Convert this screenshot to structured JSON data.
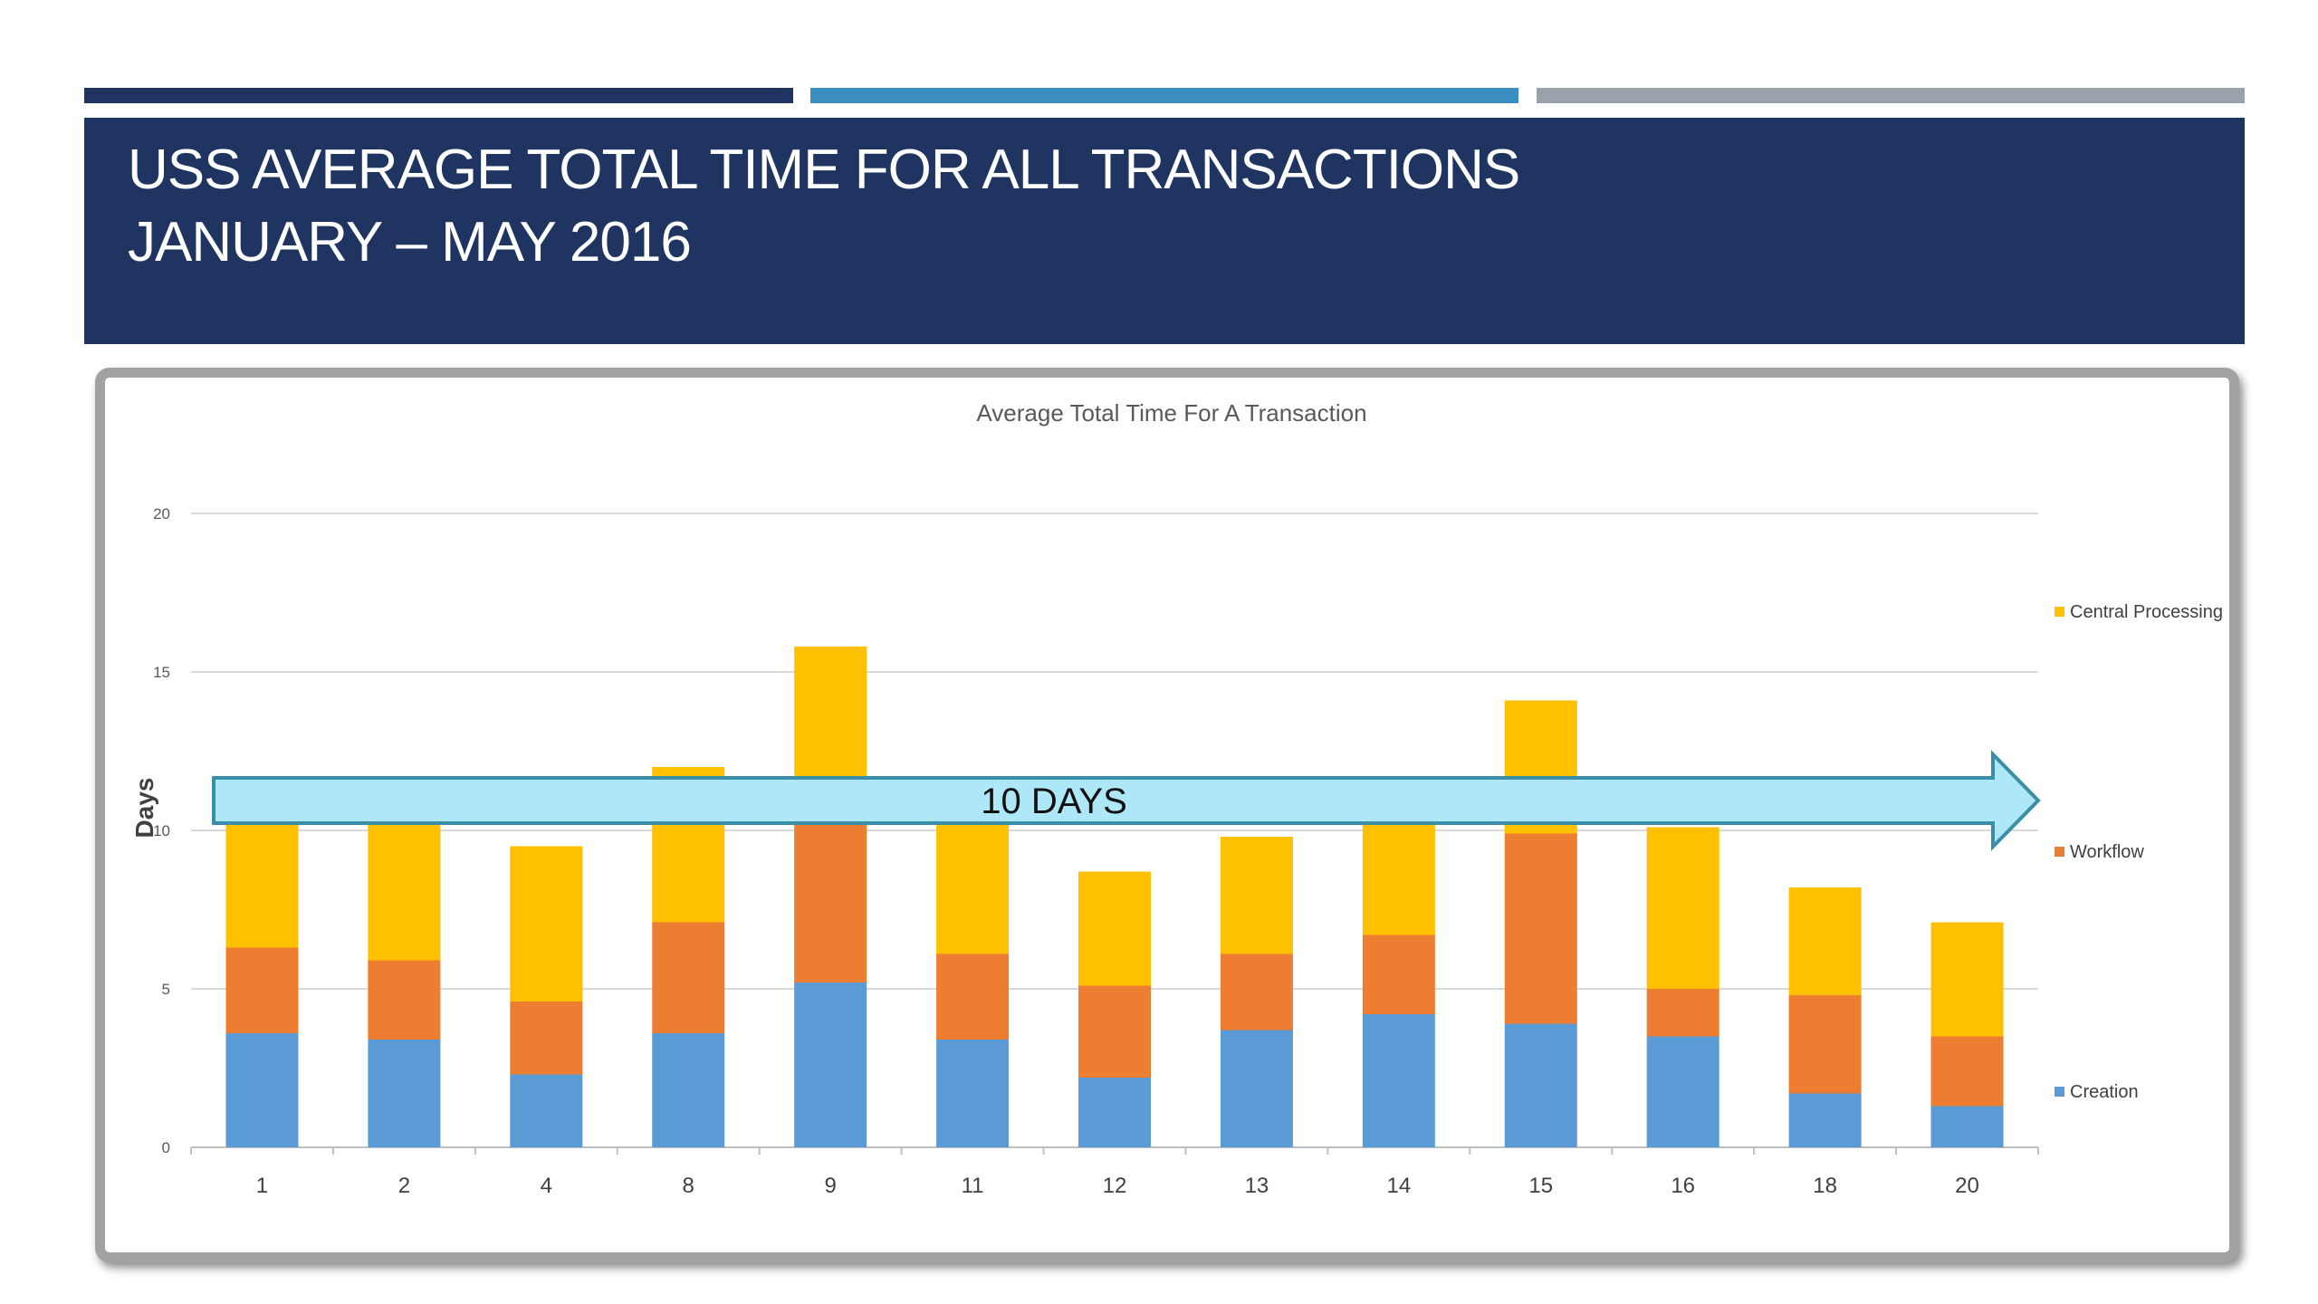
{
  "slide": {
    "title_line1": "USS AVERAGE TOTAL TIME FOR ALL TRANSACTIONS",
    "title_line2": "JANUARY – MAY 2016"
  },
  "colors": {
    "navy": "#1f3461",
    "teal": "#3a8ec0",
    "gray": "#9aa3ab",
    "creation": "#5b9bd5",
    "workflow": "#ed7d31",
    "central": "#ffc000"
  },
  "annotation": {
    "label": "10 DAYS",
    "value": 10,
    "color": "#aee7f7",
    "border": "#3a8fa7"
  },
  "chart_data": {
    "type": "bar",
    "stacked": true,
    "title": "Average Total Time For A Transaction",
    "xlabel": "",
    "ylabel": "Days",
    "ylim": [
      0,
      20
    ],
    "yticks": [
      0,
      5,
      10,
      15,
      20
    ],
    "grid": true,
    "legend_position": "right",
    "categories": [
      "1",
      "2",
      "4",
      "8",
      "9",
      "11",
      "12",
      "13",
      "14",
      "15",
      "16",
      "18",
      "20"
    ],
    "series": [
      {
        "name": "Creation",
        "color": "#5b9bd5",
        "values": [
          3.6,
          3.4,
          2.3,
          3.6,
          5.2,
          3.4,
          2.2,
          3.7,
          4.2,
          3.9,
          3.5,
          1.7,
          1.3
        ]
      },
      {
        "name": "Workflow",
        "color": "#ed7d31",
        "values": [
          2.7,
          2.5,
          2.3,
          3.5,
          5.1,
          2.7,
          2.9,
          2.4,
          2.5,
          6.0,
          1.5,
          3.1,
          2.2
        ]
      },
      {
        "name": "Central Processing",
        "color": "#ffc000",
        "values": [
          3.9,
          4.3,
          4.9,
          4.9,
          5.5,
          4.1,
          3.6,
          3.7,
          3.5,
          4.2,
          5.1,
          3.4,
          3.6
        ]
      }
    ]
  }
}
